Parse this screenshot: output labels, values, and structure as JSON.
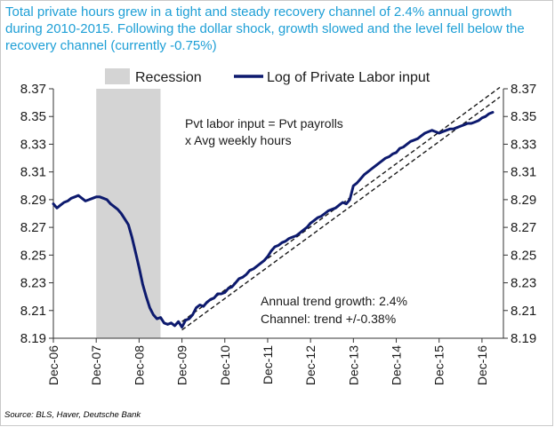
{
  "header": {
    "headline": "Total private hours grew in a tight and steady recovery channel of 2.4% annual growth during 2010-2015. Following the dollar shock, growth slowed and the level fell below the recovery channel (currently -0.75%)"
  },
  "footer": {
    "source": "Source: BLS, Haver, Deutsche Bank"
  },
  "legend": {
    "recession_label": "Recession",
    "series_label": "Log of Private Labor input"
  },
  "annotations": {
    "definition_line1": "Pvt labor input = Pvt payrolls",
    "definition_line2": "x Avg weekly hours",
    "trend_line1": "Annual trend growth: 2.4%",
    "trend_line2": "Channel: trend +/-0.38%"
  },
  "colors": {
    "series": "#0d1a6e",
    "recession": "#d4d4d4",
    "headline": "#1e9fd6",
    "trend": "#1a1a1a"
  },
  "chart_data": {
    "type": "line",
    "title": "",
    "xlabel": "",
    "ylabel": "",
    "ylim": [
      8.19,
      8.37
    ],
    "yticks": [
      "8.19",
      "8.21",
      "8.23",
      "8.25",
      "8.27",
      "8.29",
      "8.31",
      "8.33",
      "8.35",
      "8.37"
    ],
    "xlim": [
      "2006-12",
      "2017-06"
    ],
    "xticks": [
      "Dec-06",
      "Dec-07",
      "Dec-08",
      "Dec-09",
      "Dec-10",
      "Dec-11",
      "Dec-12",
      "Dec-13",
      "Dec-14",
      "Dec-15",
      "Dec-16"
    ],
    "legend_position": "top",
    "grid": false,
    "recession": {
      "start": "2007-12",
      "end": "2009-06"
    },
    "series": [
      {
        "name": "Log of Private Labor input",
        "x": [
          "2006-12",
          "2007-01",
          "2007-02",
          "2007-03",
          "2007-04",
          "2007-05",
          "2007-06",
          "2007-07",
          "2007-08",
          "2007-09",
          "2007-10",
          "2007-11",
          "2007-12",
          "2008-01",
          "2008-02",
          "2008-03",
          "2008-04",
          "2008-05",
          "2008-06",
          "2008-07",
          "2008-08",
          "2008-09",
          "2008-10",
          "2008-11",
          "2008-12",
          "2009-01",
          "2009-02",
          "2009-03",
          "2009-04",
          "2009-05",
          "2009-06",
          "2009-07",
          "2009-08",
          "2009-09",
          "2009-10",
          "2009-11",
          "2009-12",
          "2010-01",
          "2010-02",
          "2010-03",
          "2010-04",
          "2010-05",
          "2010-06",
          "2010-07",
          "2010-08",
          "2010-09",
          "2010-10",
          "2010-11",
          "2010-12",
          "2011-01",
          "2011-02",
          "2011-03",
          "2011-04",
          "2011-05",
          "2011-06",
          "2011-07",
          "2011-08",
          "2011-09",
          "2011-10",
          "2011-11",
          "2011-12",
          "2012-01",
          "2012-02",
          "2012-03",
          "2012-04",
          "2012-05",
          "2012-06",
          "2012-07",
          "2012-08",
          "2012-09",
          "2012-10",
          "2012-11",
          "2012-12",
          "2013-01",
          "2013-02",
          "2013-03",
          "2013-04",
          "2013-05",
          "2013-06",
          "2013-07",
          "2013-08",
          "2013-09",
          "2013-10",
          "2013-11",
          "2013-12",
          "2014-01",
          "2014-02",
          "2014-03",
          "2014-04",
          "2014-05",
          "2014-06",
          "2014-07",
          "2014-08",
          "2014-09",
          "2014-10",
          "2014-11",
          "2014-12",
          "2015-01",
          "2015-02",
          "2015-03",
          "2015-04",
          "2015-05",
          "2015-06",
          "2015-07",
          "2015-08",
          "2015-09",
          "2015-10",
          "2015-11",
          "2015-12",
          "2016-01",
          "2016-02",
          "2016-03",
          "2016-04",
          "2016-05",
          "2016-06",
          "2016-07",
          "2016-08",
          "2016-09",
          "2016-10",
          "2016-11",
          "2016-12",
          "2017-01",
          "2017-02",
          "2017-03"
        ],
        "values": [
          8.287,
          8.284,
          8.286,
          8.288,
          8.289,
          8.291,
          8.292,
          8.293,
          8.291,
          8.289,
          8.29,
          8.291,
          8.292,
          8.292,
          8.291,
          8.29,
          8.287,
          8.285,
          8.283,
          8.28,
          8.276,
          8.272,
          8.263,
          8.252,
          8.241,
          8.229,
          8.22,
          8.212,
          8.207,
          8.204,
          8.205,
          8.201,
          8.2,
          8.201,
          8.199,
          8.202,
          8.198,
          8.203,
          8.204,
          8.207,
          8.212,
          8.214,
          8.213,
          8.216,
          8.218,
          8.219,
          8.222,
          8.222,
          8.223,
          8.226,
          8.227,
          8.23,
          8.233,
          8.234,
          8.236,
          8.239,
          8.24,
          8.242,
          8.244,
          8.246,
          8.249,
          8.253,
          8.256,
          8.257,
          8.259,
          8.26,
          8.262,
          8.263,
          8.264,
          8.266,
          8.268,
          8.27,
          8.273,
          8.275,
          8.277,
          8.278,
          8.28,
          8.282,
          8.283,
          8.284,
          8.286,
          8.288,
          8.287,
          8.29,
          8.3,
          8.302,
          8.305,
          8.308,
          8.31,
          8.312,
          8.314,
          8.316,
          8.318,
          8.32,
          8.321,
          8.323,
          8.324,
          8.327,
          8.328,
          8.33,
          8.332,
          8.333,
          8.334,
          8.336,
          8.338,
          8.339,
          8.34,
          8.339,
          8.338,
          8.339,
          8.34,
          8.341,
          8.341,
          8.342,
          8.343,
          8.344,
          8.345,
          8.345,
          8.346,
          8.347,
          8.349,
          8.35,
          8.352,
          8.353
        ]
      }
    ],
    "trend_lines": [
      {
        "from": {
          "x": "2009-12",
          "y": 8.202
        },
        "to": {
          "x": "2017-05",
          "y": 8.371
        }
      },
      {
        "from": {
          "x": "2009-12",
          "y": 8.196
        },
        "to": {
          "x": "2017-05",
          "y": 8.364
        }
      }
    ]
  }
}
